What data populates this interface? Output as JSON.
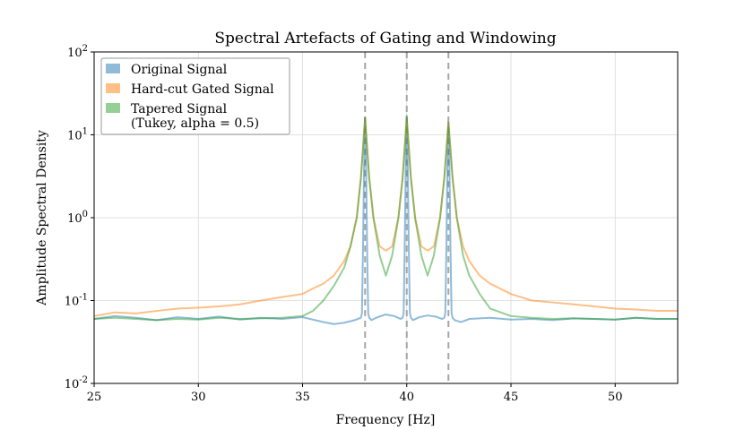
{
  "chart_data": {
    "type": "line",
    "title": "Spectral Artefacts of Gating and Windowing",
    "xlabel": "Frequency [Hz]",
    "ylabel": "Amplitude Spectral Density",
    "xlim": [
      25,
      53
    ],
    "ylim": [
      0.01,
      100
    ],
    "yscale": "log",
    "grid": true,
    "legend_position": "top-left",
    "x_ticks": [
      25,
      30,
      35,
      40,
      45,
      50
    ],
    "x_tick_labels": [
      "25",
      "30",
      "35",
      "40",
      "45",
      "50"
    ],
    "y_ticks": [
      0.01,
      0.1,
      1,
      10,
      100
    ],
    "y_tick_labels": [
      {
        "base": "10",
        "exp": "-2"
      },
      {
        "base": "10",
        "exp": "-1"
      },
      {
        "base": "10",
        "exp": "0"
      },
      {
        "base": "10",
        "exp": "1"
      },
      {
        "base": "10",
        "exp": "2"
      }
    ],
    "vlines": [
      38,
      40,
      42
    ],
    "series": [
      {
        "name": "Original Signal",
        "color": "#1f77b4",
        "x": [
          25,
          26,
          27,
          28,
          29,
          30,
          31,
          32,
          33,
          34,
          35,
          36,
          36.5,
          37,
          37.5,
          37.8,
          37.85,
          37.9,
          37.95,
          38,
          38.05,
          38.1,
          38.15,
          38.2,
          38.3,
          38.6,
          39,
          39.4,
          39.7,
          39.8,
          39.85,
          39.9,
          39.95,
          40,
          40.05,
          40.1,
          40.15,
          40.2,
          40.3,
          40.6,
          41,
          41.4,
          41.7,
          41.8,
          41.85,
          41.9,
          41.95,
          42,
          42.05,
          42.1,
          42.15,
          42.2,
          42.3,
          42.6,
          43,
          44,
          45,
          46,
          47,
          48,
          49,
          50,
          51,
          52,
          53
        ],
        "values": [
          0.06,
          0.065,
          0.062,
          0.058,
          0.063,
          0.06,
          0.064,
          0.059,
          0.062,
          0.06,
          0.063,
          0.055,
          0.052,
          0.054,
          0.058,
          0.062,
          0.07,
          0.4,
          4.0,
          16.0,
          4.0,
          0.4,
          0.07,
          0.062,
          0.058,
          0.063,
          0.068,
          0.065,
          0.06,
          0.062,
          0.07,
          0.4,
          4.0,
          17.0,
          4.0,
          0.4,
          0.07,
          0.062,
          0.058,
          0.063,
          0.066,
          0.064,
          0.06,
          0.062,
          0.07,
          0.4,
          4.0,
          14.0,
          4.0,
          0.4,
          0.07,
          0.062,
          0.058,
          0.055,
          0.06,
          0.062,
          0.059,
          0.06,
          0.058,
          0.061,
          0.06,
          0.059,
          0.062,
          0.06,
          0.06
        ]
      },
      {
        "name": "Hard-cut Gated Signal",
        "color": "#ff7f0e",
        "x": [
          25,
          26,
          27,
          28,
          29,
          30,
          31,
          32,
          33,
          34,
          35,
          35.5,
          36,
          36.5,
          37,
          37.3,
          37.6,
          37.8,
          38,
          38.2,
          38.4,
          38.7,
          39,
          39.3,
          39.6,
          39.8,
          40,
          40.2,
          40.4,
          40.7,
          41,
          41.3,
          41.6,
          41.8,
          42,
          42.2,
          42.4,
          42.7,
          43,
          43.5,
          44,
          45,
          46,
          47,
          48,
          49,
          50,
          51,
          52,
          53
        ],
        "values": [
          0.065,
          0.072,
          0.07,
          0.075,
          0.08,
          0.082,
          0.085,
          0.09,
          0.1,
          0.11,
          0.12,
          0.14,
          0.16,
          0.2,
          0.3,
          0.45,
          1.0,
          3.0,
          16.0,
          3.0,
          1.0,
          0.45,
          0.4,
          0.45,
          1.0,
          3.0,
          16.0,
          3.0,
          1.0,
          0.45,
          0.4,
          0.45,
          1.0,
          3.0,
          14.0,
          3.0,
          1.0,
          0.45,
          0.3,
          0.2,
          0.16,
          0.12,
          0.1,
          0.095,
          0.09,
          0.085,
          0.08,
          0.078,
          0.075,
          0.075
        ]
      },
      {
        "name": "Tapered Signal\n(Tukey, alpha = 0.5)",
        "color": "#2ca02c",
        "x": [
          25,
          26,
          27,
          28,
          29,
          30,
          31,
          32,
          33,
          34,
          35,
          35.5,
          36,
          36.5,
          37,
          37.3,
          37.6,
          37.8,
          38,
          38.2,
          38.4,
          38.7,
          39,
          39.3,
          39.6,
          39.8,
          40,
          40.2,
          40.4,
          40.7,
          41,
          41.3,
          41.6,
          41.8,
          42,
          42.2,
          42.4,
          42.7,
          43,
          43.5,
          44,
          45,
          46,
          47,
          48,
          49,
          50,
          51,
          52,
          53
        ],
        "values": [
          0.06,
          0.062,
          0.06,
          0.058,
          0.06,
          0.059,
          0.062,
          0.06,
          0.061,
          0.062,
          0.065,
          0.075,
          0.1,
          0.15,
          0.25,
          0.45,
          1.0,
          3.0,
          16.0,
          3.0,
          1.0,
          0.35,
          0.2,
          0.35,
          1.0,
          3.0,
          16.0,
          3.0,
          1.0,
          0.35,
          0.2,
          0.35,
          1.0,
          3.0,
          14.0,
          3.0,
          1.0,
          0.35,
          0.2,
          0.12,
          0.08,
          0.065,
          0.062,
          0.06,
          0.061,
          0.06,
          0.059,
          0.062,
          0.06,
          0.06
        ]
      }
    ]
  }
}
